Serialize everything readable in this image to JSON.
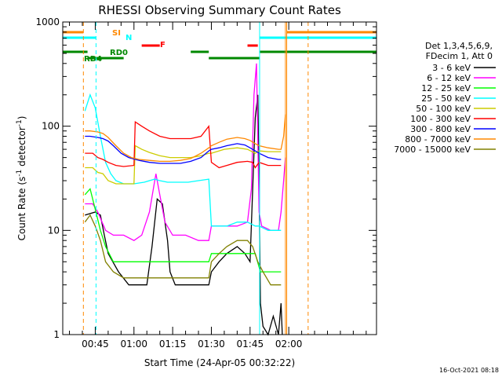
{
  "chart_data": {
    "type": "line",
    "title": "RHESSI Observing Summary Count Rates",
    "xlabel": "Start Time (24-Apr-05 00:32:22)",
    "ylabel_main": "Count Rate (s",
    "ylabel_sup1": "-1",
    "ylabel_mid": " detector",
    "ylabel_sup2": "-1",
    "ylabel_end": ")",
    "y_scale": "log",
    "ylim": [
      1,
      1000
    ],
    "xlim_minutes": [
      32.4,
      154
    ],
    "x_ticks": [
      {
        "m": 45,
        "label": "00:45"
      },
      {
        "m": 60,
        "label": "01:00"
      },
      {
        "m": 75,
        "label": "01:15"
      },
      {
        "m": 90,
        "label": "01:30"
      },
      {
        "m": 105,
        "label": "01:45"
      },
      {
        "m": 120,
        "label": "02:00"
      }
    ],
    "y_ticks": [
      {
        "v": 1,
        "label": "1"
      },
      {
        "v": 10,
        "label": "10"
      },
      {
        "v": 100,
        "label": "100"
      },
      {
        "v": 1000,
        "label": "1000"
      }
    ],
    "legend_header": [
      "Det 1,3,4,5,6,9,",
      "FDecim 1, Att 0"
    ],
    "series": [
      {
        "name": "3 - 6 keV",
        "color": "#000000",
        "points": [
          [
            32.4,
            null
          ],
          [
            40.5,
            null
          ],
          [
            41,
            14
          ],
          [
            45,
            15
          ],
          [
            47,
            14
          ],
          [
            48.5,
            9
          ],
          [
            50,
            6
          ],
          [
            54,
            4
          ],
          [
            58,
            3
          ],
          [
            60,
            3
          ],
          [
            63,
            3
          ],
          [
            65,
            3
          ],
          [
            67,
            7
          ],
          [
            69,
            20
          ],
          [
            71,
            18
          ],
          [
            73,
            8
          ],
          [
            74,
            4
          ],
          [
            76,
            3
          ],
          [
            80,
            3
          ],
          [
            85,
            3
          ],
          [
            89,
            3
          ],
          [
            90,
            4
          ],
          [
            93,
            5
          ],
          [
            96,
            6
          ],
          [
            100,
            7
          ],
          [
            103,
            6
          ],
          [
            105,
            5
          ],
          [
            107,
            120
          ],
          [
            108,
            200
          ],
          [
            108.6,
            15
          ],
          [
            109,
            2
          ],
          [
            110,
            1.2
          ],
          [
            112,
            1
          ],
          [
            114,
            1.5
          ],
          [
            116,
            1
          ],
          [
            117,
            2
          ],
          [
            117.5,
            1
          ]
        ]
      },
      {
        "name": "6 - 12 keV",
        "color": "#ff00ff",
        "points": [
          [
            41,
            18
          ],
          [
            44,
            18
          ],
          [
            46,
            15
          ],
          [
            49,
            10
          ],
          [
            52,
            9
          ],
          [
            56,
            9
          ],
          [
            60,
            8
          ],
          [
            63,
            9
          ],
          [
            66,
            15
          ],
          [
            67.5,
            25
          ],
          [
            68.5,
            35
          ],
          [
            70,
            22
          ],
          [
            72,
            12
          ],
          [
            75,
            9
          ],
          [
            80,
            9
          ],
          [
            85,
            8
          ],
          [
            89,
            8
          ],
          [
            90,
            11
          ],
          [
            95,
            11
          ],
          [
            100,
            11
          ],
          [
            104,
            12
          ],
          [
            105.5,
            25
          ],
          [
            106.5,
            200
          ],
          [
            107.5,
            400
          ],
          [
            108.5,
            15
          ],
          [
            109.5,
            11
          ],
          [
            113,
            10
          ],
          [
            116,
            10
          ],
          [
            117,
            15
          ],
          [
            118,
            30
          ],
          [
            118.7,
            50
          ]
        ]
      },
      {
        "name": "12 - 25 keV",
        "color": "#00ff00",
        "points": [
          [
            41,
            22
          ],
          [
            43,
            25
          ],
          [
            45,
            16
          ],
          [
            47,
            10
          ],
          [
            49,
            7
          ],
          [
            52,
            5
          ],
          [
            56,
            5
          ],
          [
            60,
            5
          ],
          [
            64,
            5
          ],
          [
            68,
            5
          ],
          [
            72,
            5
          ],
          [
            76,
            5
          ],
          [
            80,
            5
          ],
          [
            85,
            5
          ],
          [
            89,
            5
          ],
          [
            90,
            6
          ],
          [
            95,
            6
          ],
          [
            100,
            6
          ],
          [
            103,
            6
          ],
          [
            105,
            6
          ],
          [
            107,
            6
          ],
          [
            109,
            4
          ],
          [
            112,
            4
          ],
          [
            116,
            4
          ],
          [
            117,
            4
          ]
        ]
      },
      {
        "name": "25 - 50 keV",
        "color": "#00ffff",
        "points": [
          [
            41,
            140
          ],
          [
            43,
            200
          ],
          [
            45,
            150
          ],
          [
            47,
            80
          ],
          [
            49,
            45
          ],
          [
            51,
            35
          ],
          [
            53,
            30
          ],
          [
            56,
            28
          ],
          [
            60,
            28
          ],
          [
            64,
            29
          ],
          [
            68,
            31
          ],
          [
            70,
            30
          ],
          [
            73,
            29
          ],
          [
            77,
            29
          ],
          [
            81,
            29
          ],
          [
            85,
            30
          ],
          [
            89,
            31
          ],
          [
            90,
            11
          ],
          [
            93,
            11
          ],
          [
            96,
            11
          ],
          [
            100,
            12
          ],
          [
            104,
            12
          ],
          [
            107,
            11
          ],
          [
            108.5,
            11
          ],
          [
            112,
            10
          ],
          [
            116,
            10
          ],
          [
            117,
            10
          ]
        ]
      },
      {
        "name": "50 - 100 keV",
        "color": "#cccc00",
        "points": [
          [
            41,
            40
          ],
          [
            44,
            40
          ],
          [
            46,
            36
          ],
          [
            48,
            35
          ],
          [
            50,
            30
          ],
          [
            53,
            28
          ],
          [
            56,
            28
          ],
          [
            60,
            28
          ],
          [
            60.5,
            65
          ],
          [
            63,
            60
          ],
          [
            66,
            56
          ],
          [
            70,
            52
          ],
          [
            74,
            50
          ],
          [
            78,
            50
          ],
          [
            82,
            50
          ],
          [
            86,
            52
          ],
          [
            89,
            55
          ],
          [
            90,
            55
          ],
          [
            95,
            60
          ],
          [
            100,
            62
          ],
          [
            104,
            60
          ],
          [
            107,
            55
          ],
          [
            108.5,
            58
          ],
          [
            112,
            57
          ],
          [
            116,
            57
          ],
          [
            117,
            57
          ]
        ]
      },
      {
        "name": "100 - 300 keV",
        "color": "#ff0000",
        "points": [
          [
            41,
            55
          ],
          [
            44,
            55
          ],
          [
            46,
            50
          ],
          [
            48,
            48
          ],
          [
            50,
            45
          ],
          [
            53,
            42
          ],
          [
            56,
            41
          ],
          [
            60,
            42
          ],
          [
            60.5,
            110
          ],
          [
            63,
            100
          ],
          [
            66,
            90
          ],
          [
            70,
            80
          ],
          [
            74,
            76
          ],
          [
            78,
            76
          ],
          [
            82,
            76
          ],
          [
            86,
            80
          ],
          [
            89,
            100
          ],
          [
            90,
            45
          ],
          [
            93,
            40
          ],
          [
            96,
            42
          ],
          [
            100,
            45
          ],
          [
            104,
            46
          ],
          [
            106,
            45
          ],
          [
            107,
            40
          ],
          [
            108.5,
            45
          ],
          [
            112,
            42
          ],
          [
            116,
            42
          ],
          [
            117,
            42
          ]
        ]
      },
      {
        "name": "300 - 800 keV",
        "color": "#0000ff",
        "points": [
          [
            41,
            80
          ],
          [
            43,
            80
          ],
          [
            46,
            78
          ],
          [
            48,
            76
          ],
          [
            50,
            72
          ],
          [
            52,
            65
          ],
          [
            55,
            55
          ],
          [
            58,
            50
          ],
          [
            62,
            47
          ],
          [
            66,
            45
          ],
          [
            70,
            44
          ],
          [
            74,
            44
          ],
          [
            78,
            44
          ],
          [
            82,
            46
          ],
          [
            86,
            50
          ],
          [
            89,
            58
          ],
          [
            90,
            60
          ],
          [
            93,
            62
          ],
          [
            96,
            65
          ],
          [
            100,
            68
          ],
          [
            103,
            66
          ],
          [
            105,
            62
          ],
          [
            107,
            58
          ],
          [
            108.5,
            55
          ],
          [
            112,
            50
          ],
          [
            116,
            48
          ],
          [
            117,
            48
          ]
        ]
      },
      {
        "name": "800 - 7000 keV",
        "color": "#ff8800",
        "points": [
          [
            41,
            90
          ],
          [
            43,
            90
          ],
          [
            46,
            88
          ],
          [
            48,
            85
          ],
          [
            50,
            78
          ],
          [
            53,
            65
          ],
          [
            56,
            55
          ],
          [
            59,
            50
          ],
          [
            62,
            48
          ],
          [
            66,
            47
          ],
          [
            70,
            46
          ],
          [
            74,
            46
          ],
          [
            78,
            47
          ],
          [
            82,
            49
          ],
          [
            86,
            55
          ],
          [
            89,
            62
          ],
          [
            90,
            65
          ],
          [
            93,
            70
          ],
          [
            96,
            75
          ],
          [
            100,
            78
          ],
          [
            103,
            76
          ],
          [
            105,
            73
          ],
          [
            107,
            68
          ],
          [
            108.5,
            65
          ],
          [
            112,
            62
          ],
          [
            116,
            60
          ],
          [
            117,
            60
          ],
          [
            118,
            80
          ],
          [
            118.7,
            130
          ]
        ]
      },
      {
        "name": "7000 - 15000 keV",
        "color": "#808000",
        "points": [
          [
            41,
            12
          ],
          [
            43,
            14
          ],
          [
            45,
            11
          ],
          [
            47,
            8
          ],
          [
            49,
            5
          ],
          [
            52,
            4
          ],
          [
            56,
            3.5
          ],
          [
            60,
            3.5
          ],
          [
            64,
            3.5
          ],
          [
            68,
            3.5
          ],
          [
            72,
            3.5
          ],
          [
            76,
            3.5
          ],
          [
            80,
            3.5
          ],
          [
            85,
            3.5
          ],
          [
            89,
            3.5
          ],
          [
            90,
            5
          ],
          [
            93,
            6
          ],
          [
            96,
            7
          ],
          [
            100,
            8
          ],
          [
            104,
            8
          ],
          [
            106,
            7
          ],
          [
            108,
            5
          ],
          [
            110,
            4
          ],
          [
            113,
            3
          ],
          [
            117,
            3
          ]
        ]
      }
    ],
    "vlines": [
      {
        "m": 40.4,
        "color": "#ff8800",
        "dash": true
      },
      {
        "m": 45.3,
        "color": "#00ffff",
        "dash": true
      },
      {
        "m": 108.7,
        "color": "#00ffff",
        "dash": false
      },
      {
        "m": 118.7,
        "color": "#ff8800",
        "dash": false
      },
      {
        "m": 119.2,
        "color": "#ff8800",
        "dash": false
      },
      {
        "m": 127.5,
        "color": "#ff8800",
        "dash": true
      }
    ],
    "flags": [
      {
        "label": "SI",
        "color": "#ff8800",
        "segments": [
          [
            32.4,
            40.4
          ],
          [
            119.2,
            154
          ]
        ],
        "level": 0
      },
      {
        "label": "N",
        "color": "#00ffff",
        "segments": [
          [
            32.4,
            45.3
          ],
          [
            108.7,
            154
          ]
        ],
        "level": 1
      },
      {
        "label": "F",
        "color": "#ff0000",
        "segments": [
          [
            63,
            70
          ],
          [
            104,
            108
          ]
        ],
        "level": 2
      },
      {
        "label": "RD0",
        "color": "#008800",
        "segments": [
          [
            32.4,
            42
          ],
          [
            82,
            89
          ],
          [
            108.7,
            154
          ]
        ],
        "level": 3
      },
      {
        "label": "RD4",
        "color": "#008800",
        "segments": [
          [
            42,
            56
          ],
          [
            89,
            108.7
          ]
        ],
        "level": 4
      }
    ],
    "grid": false,
    "legend_position": "right"
  },
  "footer": {
    "timestamp": "16-Oct-2021 08:18"
  }
}
